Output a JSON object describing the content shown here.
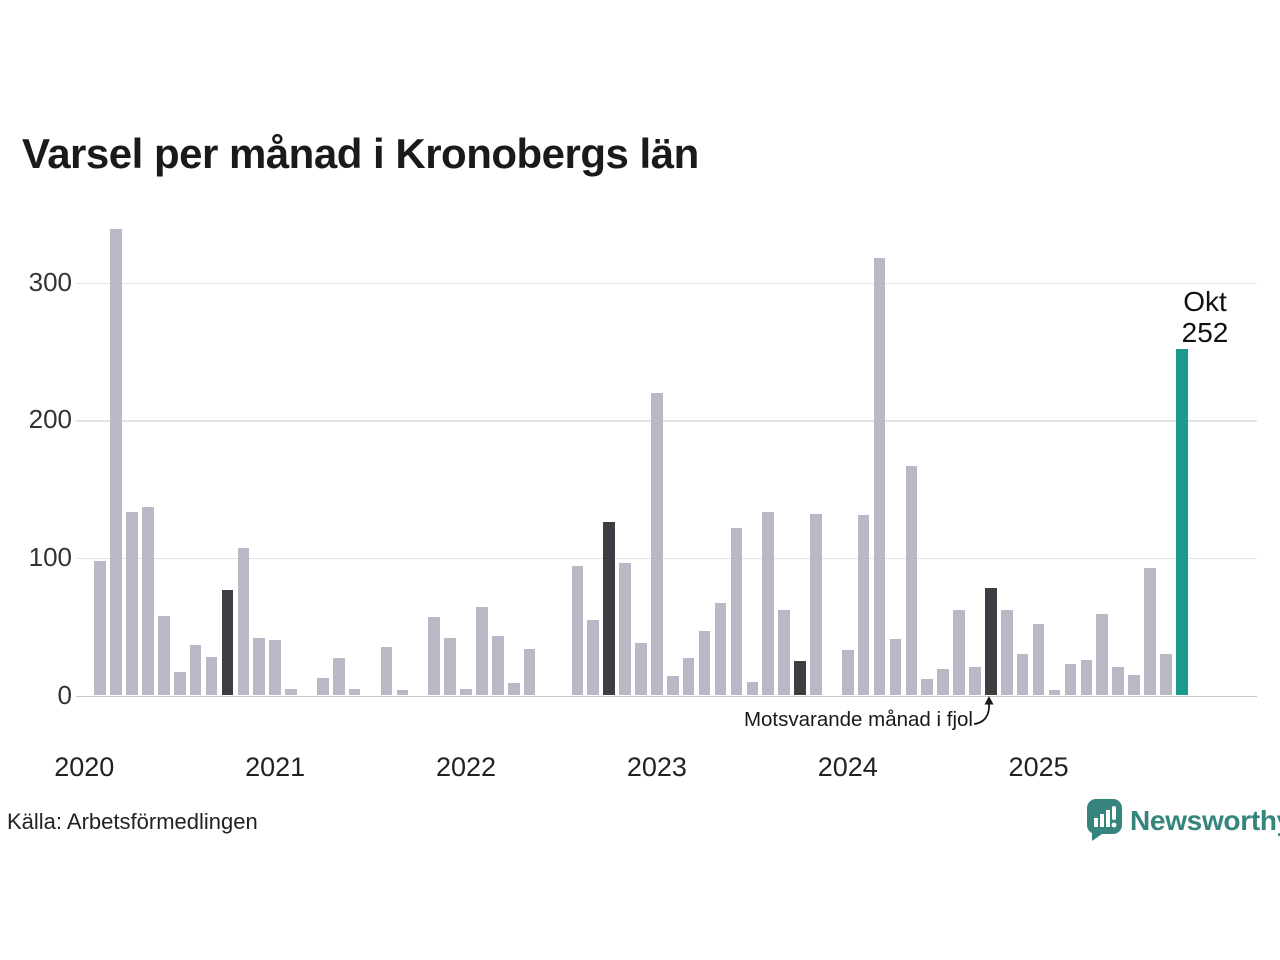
{
  "title": "Varsel per månad i Kronobergs län",
  "source": "Källa: Arbetsförmedlingen",
  "annotation": {
    "text": "Motsvarande månad i fjol"
  },
  "current_point_label": {
    "month": "Okt",
    "value": "252"
  },
  "brand": {
    "name": "Newsworthy"
  },
  "chart_data": {
    "type": "bar",
    "title": "Varsel per månad i Kronobergs län",
    "x_start": "2020-01",
    "x_end": "2025-10",
    "x_frequency": "monthly",
    "year_labels": [
      "2020",
      "2021",
      "2022",
      "2023",
      "2024",
      "2025"
    ],
    "yticks": [
      0,
      100,
      200,
      300
    ],
    "ylim": [
      0,
      345
    ],
    "grid": "horizontal",
    "values": [
      0,
      98,
      339,
      133,
      137,
      58,
      17,
      37,
      28,
      77,
      107,
      42,
      40,
      5,
      0,
      13,
      27,
      5,
      0,
      35,
      4,
      0,
      57,
      42,
      5,
      64,
      43,
      9,
      34,
      0,
      0,
      94,
      55,
      126,
      96,
      38,
      220,
      14,
      27,
      47,
      67,
      122,
      10,
      133,
      62,
      25,
      132,
      0,
      33,
      131,
      318,
      41,
      167,
      12,
      19,
      62,
      21,
      78,
      62,
      30,
      52,
      4,
      23,
      26,
      59,
      21,
      15,
      93,
      30,
      252
    ],
    "dark_month_indices": [
      9,
      21,
      33,
      45,
      57
    ],
    "current_index": 69,
    "colors": {
      "bar": "#bab7c6",
      "dark_bar": "#3e3d43",
      "current_bar": "#1a998d",
      "brand": "#35857c",
      "grid": "#e3e3e3",
      "axis": "#c9c9c9",
      "text": "#1a1a1a"
    }
  }
}
